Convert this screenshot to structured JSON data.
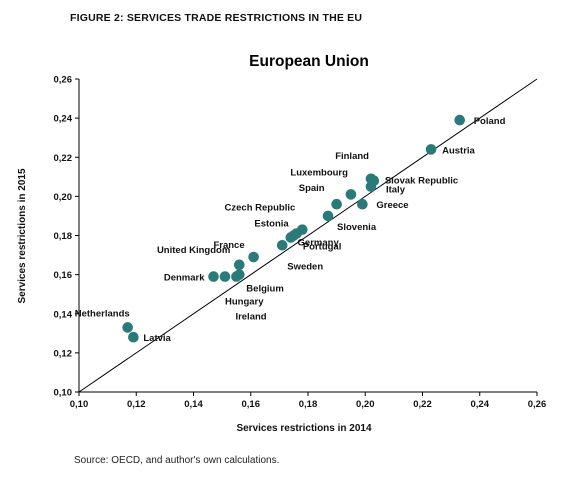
{
  "figure_label": "FIGURE 2: SERVICES TRADE RESTRICTIONS IN THE EU",
  "source_note": "Source: OECD, and author's own calculations.",
  "colors": {
    "marker": "#2a7a7a",
    "line": "#000000",
    "axis": "#000000"
  },
  "chart_data": {
    "type": "scatter",
    "title": "European Union",
    "xlabel": "Services restrictions in 2014",
    "ylabel": "Services restrictions in 2015",
    "xlim": [
      0.1,
      0.26
    ],
    "ylim": [
      0.1,
      0.26
    ],
    "xticks": [
      "0,10",
      "0,12",
      "0,14",
      "0,16",
      "0,18",
      "0,20",
      "0,22",
      "0,24",
      "0,26"
    ],
    "yticks": [
      "0,10",
      "0,12",
      "0,14",
      "0,16",
      "0,18",
      "0,20",
      "0,22",
      "0,24",
      "0,26"
    ],
    "reference_line": "y = x",
    "grid": false,
    "points": [
      {
        "label": "Poland",
        "x": 0.233,
        "y": 0.239
      },
      {
        "label": "Austria",
        "x": 0.223,
        "y": 0.224
      },
      {
        "label": "Finland",
        "x": 0.202,
        "y": 0.209
      },
      {
        "label": "Slovak Republic",
        "x": 0.203,
        "y": 0.208
      },
      {
        "label": "Italy",
        "x": 0.202,
        "y": 0.205
      },
      {
        "label": "Luxembourg",
        "x": 0.195,
        "y": 0.201
      },
      {
        "label": "Greece",
        "x": 0.199,
        "y": 0.196
      },
      {
        "label": "Spain",
        "x": 0.19,
        "y": 0.196
      },
      {
        "label": "Slovenia",
        "x": 0.187,
        "y": 0.19
      },
      {
        "label": "Czech Republic",
        "x": 0.178,
        "y": 0.183
      },
      {
        "label": "Estonia",
        "x": 0.175,
        "y": 0.18
      },
      {
        "label": "Germany",
        "x": 0.176,
        "y": 0.181
      },
      {
        "label": "Portugal",
        "x": 0.174,
        "y": 0.179
      },
      {
        "label": "Sweden",
        "x": 0.171,
        "y": 0.175
      },
      {
        "label": "France",
        "x": 0.161,
        "y": 0.169
      },
      {
        "label": "United Kingdom",
        "x": 0.156,
        "y": 0.165
      },
      {
        "label": "Denmark",
        "x": 0.147,
        "y": 0.159
      },
      {
        "label": "Hungary",
        "x": 0.151,
        "y": 0.159
      },
      {
        "label": "Ireland",
        "x": 0.155,
        "y": 0.159
      },
      {
        "label": "Belgium",
        "x": 0.156,
        "y": 0.16
      },
      {
        "label": "Netherlands",
        "x": 0.117,
        "y": 0.133
      },
      {
        "label": "Latvia",
        "x": 0.119,
        "y": 0.128
      }
    ]
  }
}
